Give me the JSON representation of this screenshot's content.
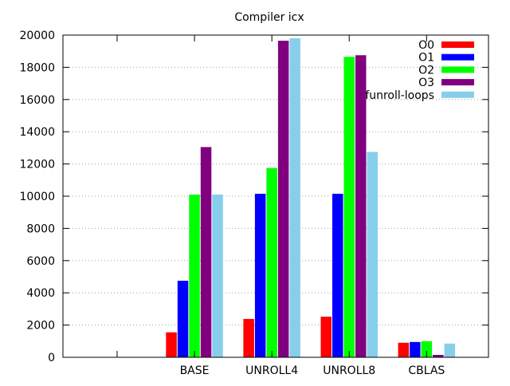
{
  "chart_data": {
    "type": "bar",
    "title": "Compiler icx",
    "xlabel": "",
    "ylabel": "",
    "categories": [
      "",
      "BASE",
      "UNROLL4",
      "UNROLL8",
      "CBLAS"
    ],
    "ylim": [
      0,
      20000
    ],
    "yticks": [
      0,
      2000,
      4000,
      6000,
      8000,
      10000,
      12000,
      14000,
      16000,
      18000,
      20000
    ],
    "grid": true,
    "legend_position": "top-right",
    "series": [
      {
        "name": "O0",
        "color": "#ff0000",
        "values": [
          null,
          1550,
          2380,
          2520,
          900
        ]
      },
      {
        "name": "O1",
        "color": "#0000ff",
        "values": [
          null,
          4750,
          10150,
          10150,
          950
        ]
      },
      {
        "name": "O2",
        "color": "#00ff00",
        "values": [
          null,
          10100,
          11750,
          18650,
          1000
        ]
      },
      {
        "name": "O3",
        "color": "#800080",
        "values": [
          null,
          13050,
          19650,
          18750,
          150
        ]
      },
      {
        "name": "funroll-loops",
        "color": "#87ceeb",
        "values": [
          null,
          10100,
          19800,
          12750,
          850
        ]
      }
    ]
  }
}
